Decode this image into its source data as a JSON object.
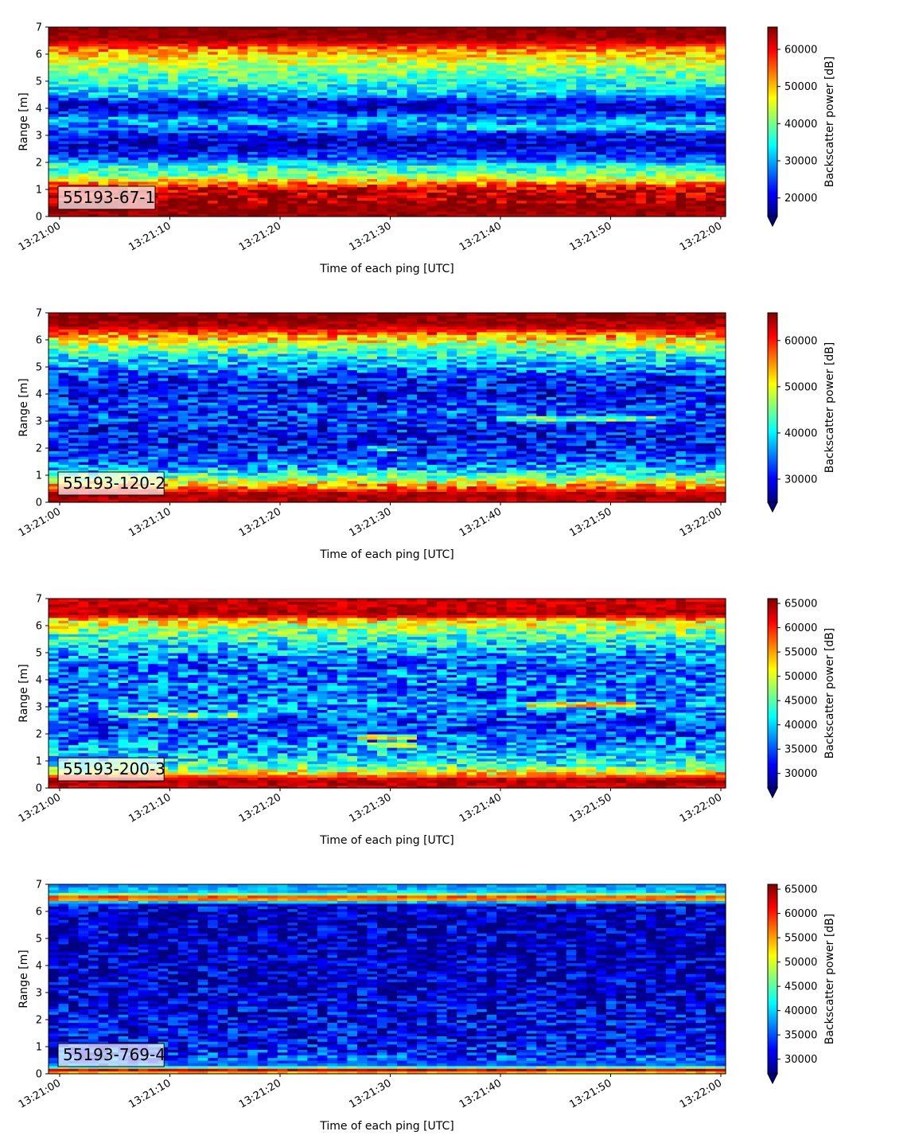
{
  "chart_data": [
    {
      "type": "heatmap",
      "tag": "55193-67-1",
      "xlabel": "Time of each ping [UTC]",
      "ylabel": "Range [m]",
      "xticks": [
        "13:21:00",
        "13:21:10",
        "13:21:20",
        "13:21:30",
        "13:21:40",
        "13:21:50",
        "13:22:00"
      ],
      "yticks": [
        0,
        1,
        2,
        3,
        4,
        5,
        6,
        7
      ],
      "ylim": [
        0,
        7
      ],
      "colorbar": {
        "label": "Backscatter power [dB]",
        "ticks": [
          20000,
          30000,
          40000,
          50000,
          60000
        ],
        "range": [
          15000,
          66000
        ],
        "colormap": "jet",
        "extend": "min"
      },
      "profile": [
        [
          0.0,
          64000
        ],
        [
          0.3,
          65000
        ],
        [
          1.0,
          62000
        ],
        [
          1.2,
          55000
        ],
        [
          1.4,
          46000
        ],
        [
          1.6,
          38000
        ],
        [
          1.9,
          36000
        ],
        [
          2.1,
          26000
        ],
        [
          2.6,
          19000
        ],
        [
          3.0,
          21000
        ],
        [
          3.3,
          27000
        ],
        [
          3.6,
          30000
        ],
        [
          3.9,
          21000
        ],
        [
          4.2,
          19000
        ],
        [
          4.5,
          31000
        ],
        [
          5.0,
          36000
        ],
        [
          5.4,
          40000
        ],
        [
          5.8,
          46000
        ],
        [
          6.2,
          53000
        ],
        [
          6.5,
          64000
        ],
        [
          7.0,
          66000
        ]
      ],
      "features": [
        {
          "range_m": 3.3,
          "t_start": 33,
          "t_end": 60,
          "value": 32000
        }
      ]
    },
    {
      "type": "heatmap",
      "tag": "55193-120-2",
      "xlabel": "Time of each ping [UTC]",
      "ylabel": "Range [m]",
      "xticks": [
        "13:21:00",
        "13:21:10",
        "13:21:20",
        "13:21:30",
        "13:21:40",
        "13:21:50",
        "13:22:00"
      ],
      "yticks": [
        0,
        1,
        2,
        3,
        4,
        5,
        6,
        7
      ],
      "ylim": [
        0,
        7
      ],
      "colorbar": {
        "label": "Backscatter power [dB]",
        "ticks": [
          30000,
          40000,
          50000,
          60000
        ],
        "range": [
          25000,
          66000
        ],
        "colormap": "jet",
        "extend": "min"
      },
      "profile": [
        [
          0.0,
          63000
        ],
        [
          0.3,
          65000
        ],
        [
          0.6,
          55000
        ],
        [
          0.9,
          46000
        ],
        [
          1.2,
          38000
        ],
        [
          1.5,
          34000
        ],
        [
          2.0,
          31000
        ],
        [
          2.5,
          30000
        ],
        [
          3.0,
          32000
        ],
        [
          3.5,
          33000
        ],
        [
          4.0,
          30000
        ],
        [
          4.5,
          31000
        ],
        [
          5.0,
          36000
        ],
        [
          5.4,
          40000
        ],
        [
          5.8,
          47000
        ],
        [
          6.2,
          55000
        ],
        [
          6.5,
          64000
        ],
        [
          7.0,
          66000
        ]
      ],
      "features": [
        {
          "range_m": 3.1,
          "t_start": 40,
          "t_end": 54,
          "value": 44000
        },
        {
          "range_m": 2.0,
          "t_start": 27,
          "t_end": 31,
          "value": 40000
        }
      ]
    },
    {
      "type": "heatmap",
      "tag": "55193-200-3",
      "xlabel": "Time of each ping [UTC]",
      "ylabel": "Range [m]",
      "xticks": [
        "13:21:00",
        "13:21:10",
        "13:21:20",
        "13:21:30",
        "13:21:40",
        "13:21:50",
        "13:22:00"
      ],
      "yticks": [
        0,
        1,
        2,
        3,
        4,
        5,
        6,
        7
      ],
      "ylim": [
        0,
        7
      ],
      "colorbar": {
        "label": "Backscatter power [dB]",
        "ticks": [
          30000,
          35000,
          40000,
          45000,
          50000,
          55000,
          60000,
          65000
        ],
        "range": [
          27000,
          66000
        ],
        "colormap": "jet",
        "extend": "min"
      },
      "profile": [
        [
          0.0,
          62000
        ],
        [
          0.3,
          65000
        ],
        [
          0.5,
          55000
        ],
        [
          0.8,
          44000
        ],
        [
          1.2,
          40000
        ],
        [
          1.6,
          37000
        ],
        [
          2.0,
          35000
        ],
        [
          2.5,
          34000
        ],
        [
          3.0,
          38000
        ],
        [
          3.5,
          35000
        ],
        [
          4.0,
          37000
        ],
        [
          4.5,
          35000
        ],
        [
          5.0,
          38000
        ],
        [
          5.4,
          42000
        ],
        [
          5.8,
          46000
        ],
        [
          6.2,
          52000
        ],
        [
          6.4,
          64000
        ],
        [
          7.0,
          63000
        ]
      ],
      "features": [
        {
          "range_m": 3.1,
          "t_start": 42,
          "t_end": 52,
          "value": 52000
        },
        {
          "range_m": 2.7,
          "t_start": 5,
          "t_end": 16,
          "value": 46000
        },
        {
          "range_m": 1.9,
          "t_start": 27,
          "t_end": 32,
          "value": 50000
        },
        {
          "range_m": 1.6,
          "t_start": 28,
          "t_end": 32,
          "value": 47000
        }
      ]
    },
    {
      "type": "heatmap",
      "tag": "55193-769-4",
      "xlabel": "Time of each ping [UTC]",
      "ylabel": "Range [m]",
      "xticks": [
        "13:21:00",
        "13:21:10",
        "13:21:20",
        "13:21:30",
        "13:21:40",
        "13:21:50",
        "13:22:00"
      ],
      "yticks": [
        0,
        1,
        2,
        3,
        4,
        5,
        6,
        7
      ],
      "ylim": [
        0,
        7
      ],
      "colorbar": {
        "label": "Backscatter power [dB]",
        "ticks": [
          30000,
          35000,
          40000,
          45000,
          50000,
          55000,
          60000,
          65000
        ],
        "range": [
          27000,
          66000
        ],
        "colormap": "jet",
        "extend": "min"
      },
      "profile": [
        [
          0.0,
          50000
        ],
        [
          0.15,
          62000
        ],
        [
          0.3,
          36000
        ],
        [
          0.6,
          34000
        ],
        [
          1.0,
          32000
        ],
        [
          1.5,
          31000
        ],
        [
          2.0,
          31000
        ],
        [
          3.0,
          30000
        ],
        [
          4.0,
          29000
        ],
        [
          5.0,
          29000
        ],
        [
          6.0,
          29000
        ],
        [
          6.3,
          31000
        ],
        [
          6.5,
          64000
        ],
        [
          6.7,
          40000
        ],
        [
          7.0,
          37000
        ]
      ],
      "features": []
    }
  ]
}
